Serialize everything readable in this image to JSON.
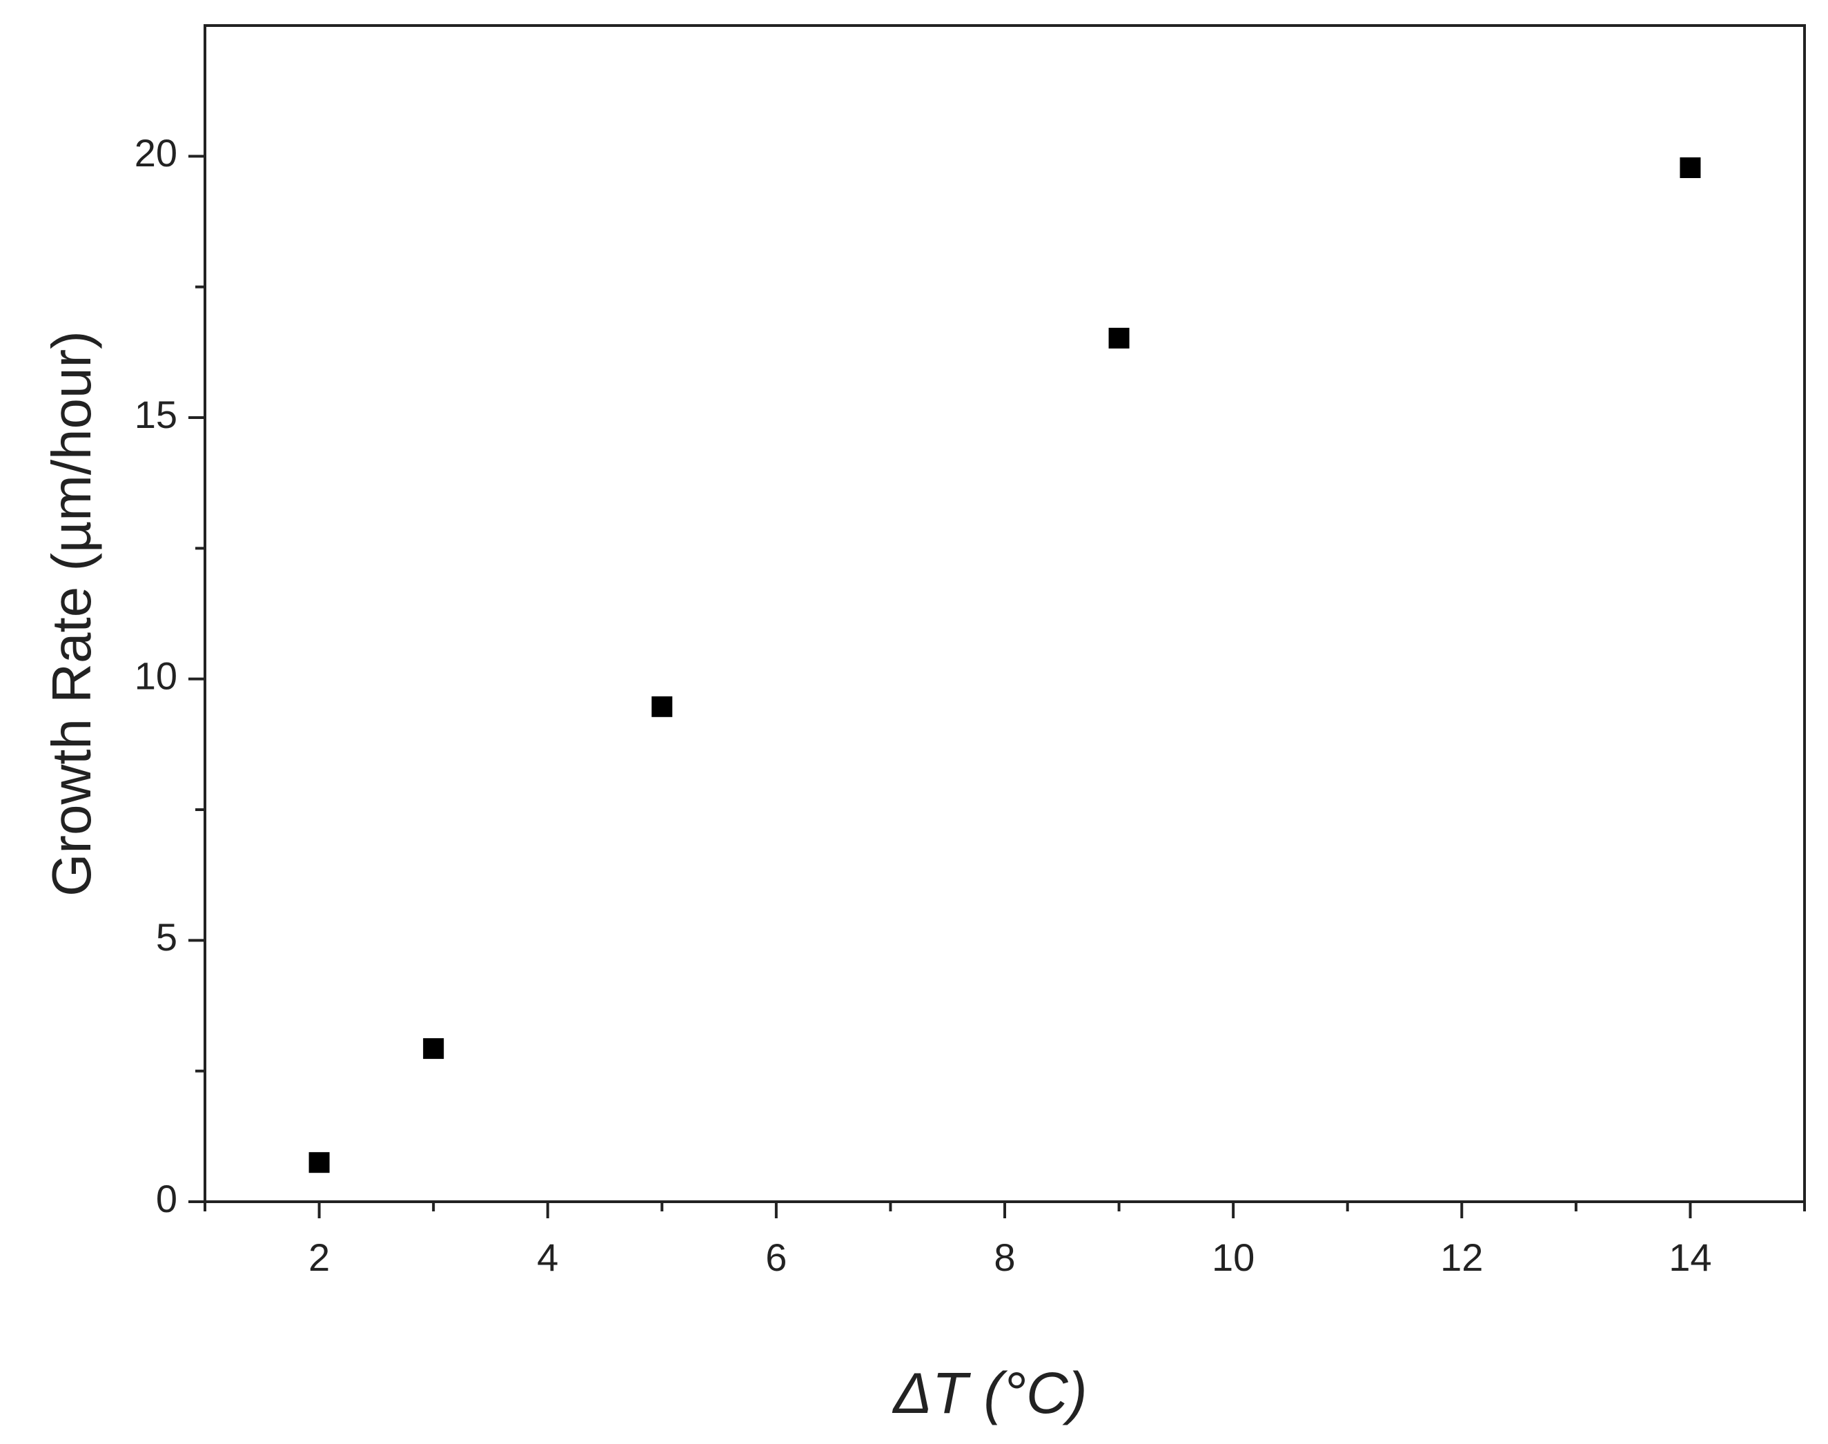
{
  "chart_data": {
    "type": "scatter",
    "x_label": "ΔT (°C)",
    "y_label": "Growth Rate (µm/hour)",
    "x": [
      2,
      3,
      5,
      9,
      14
    ],
    "series": [
      {
        "color": "#000000",
        "values": [
          0.75,
          2.93,
          9.47,
          16.52,
          19.78
        ]
      }
    ],
    "xlim": [
      1,
      15
    ],
    "ylim": [
      0,
      22.5
    ],
    "xticks": [
      2,
      4,
      6,
      8,
      10,
      12,
      14
    ],
    "yticks": [
      0,
      5,
      10,
      15,
      20
    ],
    "xminorticks": [
      1,
      3,
      5,
      7,
      9,
      11,
      13,
      15
    ],
    "yminorticks": [
      2.5,
      7.5,
      12.5,
      17.5
    ],
    "grid": false
  }
}
